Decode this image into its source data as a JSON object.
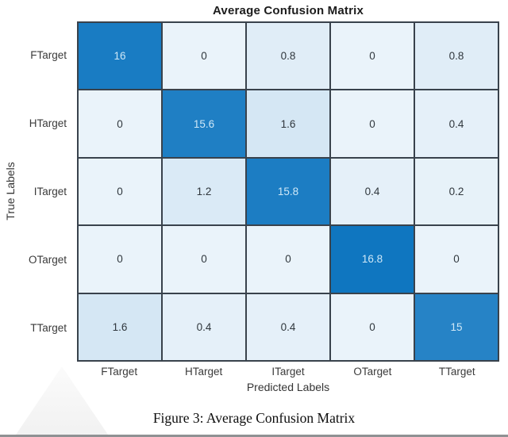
{
  "chart_data": {
    "type": "heatmap",
    "title": "Average Confusion Matrix",
    "xlabel": "Predicted Labels",
    "ylabel": "True Labels",
    "x_categories": [
      "FTarget",
      "HTarget",
      "ITarget",
      "OTarget",
      "TTarget"
    ],
    "y_categories": [
      "FTarget",
      "HTarget",
      "ITarget",
      "OTarget",
      "TTarget"
    ],
    "matrix": [
      [
        16,
        0,
        0.8,
        0,
        0.8
      ],
      [
        0,
        15.6,
        1.6,
        0,
        0.4
      ],
      [
        0,
        1.2,
        15.8,
        0.4,
        0.2
      ],
      [
        0,
        0,
        0,
        16.8,
        0
      ],
      [
        1.6,
        0.4,
        0.4,
        0,
        15
      ]
    ],
    "value_min": 0,
    "value_max": 16.8,
    "legend": "none",
    "grid": "on",
    "colors": {
      "cell_low": "#eaf3fa",
      "cell_high": "#0f76c0",
      "grid_line": "#39424c",
      "text_on_light": "#30373d",
      "text_on_dark": "#cfe8f7"
    }
  },
  "caption": "Figure 3: Average Confusion Matrix"
}
